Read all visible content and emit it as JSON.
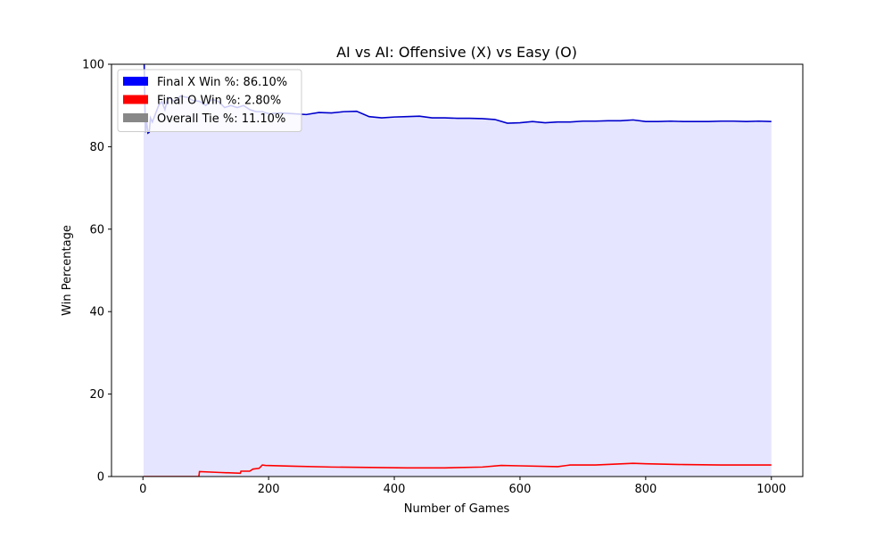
{
  "chart_data": {
    "type": "line",
    "title": "AI vs AI: Offensive (X) vs Easy (O)",
    "xlabel": "Number of Games",
    "ylabel": "Win Percentage",
    "xlim": [
      -50,
      1050
    ],
    "ylim": [
      0,
      100
    ],
    "xticks": [
      0,
      200,
      400,
      600,
      800,
      1000
    ],
    "yticks": [
      0,
      20,
      40,
      60,
      80,
      100
    ],
    "grid": false,
    "legend_position": "top-left",
    "colors": {
      "x_line": "#0000cc",
      "x_fill": "#e5e5ff",
      "o_line": "#ff0000",
      "tie": "#888888"
    },
    "legend": [
      {
        "label": "Final X Win %: 86.10%",
        "color": "#0000ff"
      },
      {
        "label": "Final O Win %: 2.80%",
        "color": "#ff0000"
      },
      {
        "label": "Overall Tie %: 11.10%",
        "color": "#888888"
      }
    ],
    "series": [
      {
        "name": "Final X Win %: 86.10%",
        "x": [
          1,
          2,
          4,
          5,
          6,
          8,
          10,
          12,
          15,
          20,
          25,
          30,
          35,
          40,
          50,
          60,
          70,
          80,
          90,
          100,
          110,
          120,
          130,
          140,
          150,
          160,
          170,
          180,
          190,
          200,
          220,
          240,
          260,
          280,
          300,
          320,
          340,
          360,
          380,
          400,
          420,
          440,
          460,
          480,
          500,
          520,
          540,
          560,
          580,
          600,
          620,
          640,
          660,
          680,
          700,
          720,
          740,
          760,
          780,
          800,
          820,
          840,
          860,
          880,
          900,
          920,
          940,
          960,
          980,
          1000
        ],
        "y": [
          100,
          100,
          83.5,
          85,
          86,
          83.3,
          83.5,
          87,
          86,
          88,
          90,
          91,
          89,
          92,
          91,
          92.3,
          92,
          91.2,
          91,
          90,
          91.5,
          91,
          89.5,
          90,
          89.5,
          90,
          89,
          88.5,
          88.5,
          88,
          88.2,
          88,
          87.8,
          88.3,
          88.2,
          88.5,
          88.6,
          87.3,
          87,
          87.2,
          87.3,
          87.4,
          87,
          87,
          86.9,
          86.9,
          86.8,
          86.6,
          85.7,
          85.8,
          86.1,
          85.8,
          86,
          86,
          86.2,
          86.2,
          86.3,
          86.3,
          86.5,
          86.1,
          86.1,
          86.2,
          86.1,
          86.1,
          86.1,
          86.2,
          86.2,
          86.1,
          86.2,
          86.1
        ]
      },
      {
        "name": "Final O Win %: 2.80%",
        "x": [
          1,
          30,
          60,
          89,
          90,
          120,
          155,
          156,
          170,
          175,
          185,
          190,
          195,
          240,
          300,
          360,
          420,
          480,
          540,
          570,
          600,
          660,
          680,
          720,
          780,
          800,
          860,
          920,
          1000
        ],
        "y": [
          0,
          0,
          0,
          0,
          1.2,
          1,
          0.8,
          1.3,
          1.3,
          1.8,
          2,
          2.8,
          2.7,
          2.5,
          2.3,
          2.2,
          2.1,
          2.1,
          2.3,
          2.7,
          2.6,
          2.4,
          2.8,
          2.8,
          3.2,
          3.1,
          2.9,
          2.8,
          2.8
        ]
      }
    ]
  }
}
